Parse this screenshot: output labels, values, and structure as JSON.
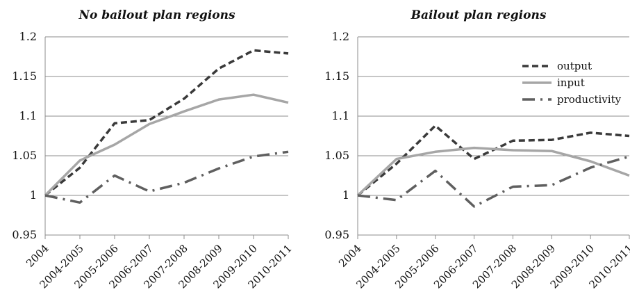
{
  "chart_data": [
    {
      "type": "line",
      "title": "No bailout plan regions",
      "xlabel": "",
      "ylabel": "",
      "ylim": [
        0.95,
        1.2
      ],
      "yticks": [
        "0.95",
        "1",
        "1.05",
        "1.1",
        "1.15",
        "1.2"
      ],
      "x": [
        "2004",
        "2004-2005",
        "2005-2006",
        "2006-2007",
        "2007-2008",
        "2008-2009",
        "2009-2010",
        "2010-2011"
      ],
      "grid": true,
      "legend": "none",
      "series": [
        {
          "name": "output",
          "style": "dashed",
          "color": "#3a3a3a",
          "values": [
            1.0,
            1.035,
            1.091,
            1.095,
            1.122,
            1.16,
            1.183,
            1.179
          ]
        },
        {
          "name": "input",
          "style": "solid",
          "color": "#a6a6a6",
          "values": [
            1.0,
            1.044,
            1.064,
            1.09,
            1.106,
            1.121,
            1.127,
            1.117
          ]
        },
        {
          "name": "productivity",
          "style": "dash-dot",
          "color": "#5f5f5f",
          "values": [
            1.0,
            0.991,
            1.025,
            1.005,
            1.016,
            1.034,
            1.049,
            1.055
          ]
        }
      ]
    },
    {
      "type": "line",
      "title": "Bailout plan regions",
      "xlabel": "",
      "ylabel": "",
      "ylim": [
        0.95,
        1.2
      ],
      "yticks": [
        "0.95",
        "1",
        "1.05",
        "1.1",
        "1.15",
        "1.2"
      ],
      "x": [
        "2004",
        "2004-2005",
        "2005-2006",
        "2006-2007",
        "2007-2008",
        "2008-2009",
        "2009-2010",
        "2010-2011"
      ],
      "grid": true,
      "legend": "top-right",
      "series": [
        {
          "name": "output",
          "style": "dashed",
          "color": "#3a3a3a",
          "values": [
            1.0,
            1.04,
            1.088,
            1.046,
            1.069,
            1.07,
            1.079,
            1.075
          ]
        },
        {
          "name": "input",
          "style": "solid",
          "color": "#a6a6a6",
          "values": [
            1.0,
            1.046,
            1.055,
            1.06,
            1.057,
            1.056,
            1.043,
            1.025
          ]
        },
        {
          "name": "productivity",
          "style": "dash-dot",
          "color": "#5f5f5f",
          "values": [
            1.0,
            0.994,
            1.031,
            0.986,
            1.011,
            1.013,
            1.035,
            1.049
          ]
        }
      ]
    }
  ]
}
